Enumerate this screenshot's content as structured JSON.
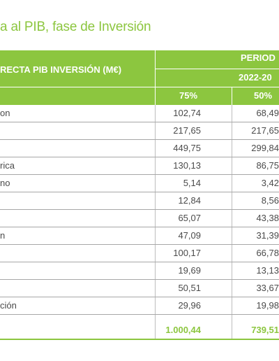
{
  "title": "a al PIB, fase de Inversión",
  "table": {
    "header_col_label": "RECTA PIB INVERSIÓN (M€)",
    "header_period": "PERIOD",
    "header_years": "2022-20",
    "header_pct_a": "75%",
    "header_pct_b": "50%",
    "rows": [
      {
        "label": "on",
        "a": "102,74",
        "b": "68,49"
      },
      {
        "label": "",
        "a": "217,65",
        "b": "217,65"
      },
      {
        "label": "",
        "a": "449,75",
        "b": "299,84"
      },
      {
        "label": "rica",
        "a": "130,13",
        "b": "86,75"
      },
      {
        "label": "no",
        "a": "5,14",
        "b": "3,42"
      },
      {
        "label": "",
        "a": "12,84",
        "b": "8,56"
      },
      {
        "label": "",
        "a": "65,07",
        "b": "43,38"
      },
      {
        "label": "n",
        "a": "47,09",
        "b": "31,39"
      },
      {
        "label": "",
        "a": "100,17",
        "b": "66,78"
      },
      {
        "label": "",
        "a": "19,69",
        "b": "13,13"
      },
      {
        "label": "",
        "a": "50,51",
        "b": "33,67"
      },
      {
        "label": "ción",
        "a": "29,96",
        "b": "19,98"
      }
    ],
    "total": {
      "a": "1.000,44",
      "b": "739,51"
    }
  }
}
